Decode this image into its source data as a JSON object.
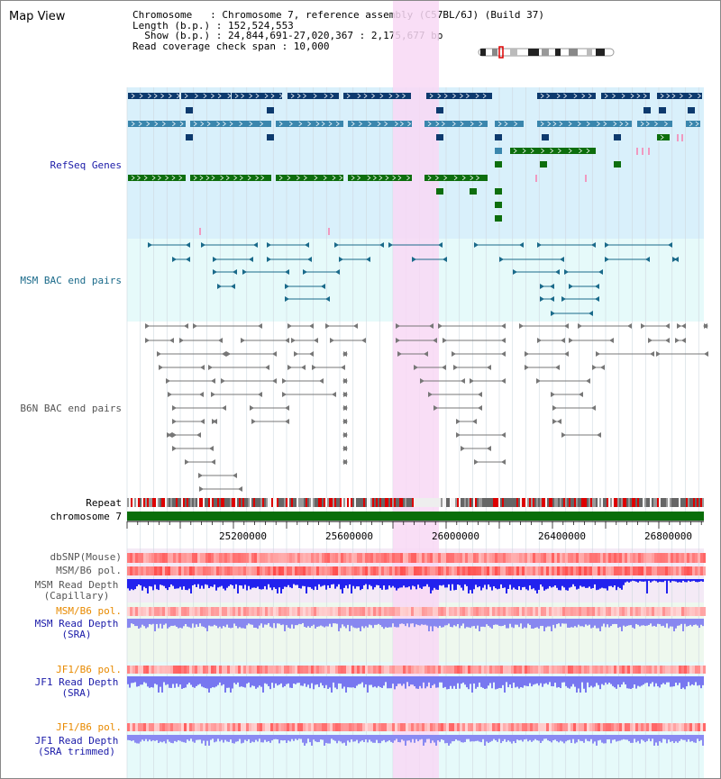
{
  "view_title": "Map View",
  "info": {
    "chromosome_line": "Chromosome   : Chromosome 7, reference assembly (C57BL/6J) (Build 37)",
    "length_line": "Length (b.p.) : 152,524,553",
    "show_line": "  Show (b.p.) : 24,844,691-27,020,367 : 2,175,677 bp",
    "coverage_line": "Read coverage check span : 10,000"
  },
  "tracks": {
    "refseq": {
      "label": "RefSeq Genes",
      "color": "#1a1aa8"
    },
    "msm_bac": {
      "label": "MSM BAC end pairs",
      "color": "#1a6a8a"
    },
    "b6n_bac": {
      "label": "B6N BAC end pairs",
      "color": "#555555"
    },
    "repeat": {
      "label": "Repeat"
    },
    "chromosome": {
      "label": "chromosome 7"
    },
    "dbsnp": {
      "label": "dbSNP(Mouse)"
    },
    "msm_b6_pol": {
      "label": "MSM/B6 pol."
    },
    "msm_depth_cap": {
      "label_line1": "MSM Read Depth",
      "label_line2": "(Capillary)"
    },
    "msm_b6_pol2": {
      "label": "MSM/B6 pol.",
      "color": "#e88a00"
    },
    "msm_depth_sra": {
      "label_line1": "MSM Read Depth",
      "label_line2": "(SRA)",
      "color": "#1a1aa8"
    },
    "jf1_b6_pol": {
      "label": "JF1/B6 pol.",
      "color": "#e88a00"
    },
    "jf1_depth_sra": {
      "label_line1": "JF1 Read Depth",
      "label_line2": "(SRA)",
      "color": "#1a1aa8"
    },
    "jf1_b6_pol2": {
      "label": "JF1/B6 pol.",
      "color": "#e88a00"
    },
    "jf1_depth_trim": {
      "label_line1": "JF1 Read Depth",
      "label_line2": "(SRA trimmed)",
      "color": "#1a1aa8"
    }
  },
  "axis_ticks": [
    "25200000",
    "25600000",
    "26000000",
    "26400000",
    "26800000"
  ],
  "colors": {
    "refseq_dark": "#0d3a6e",
    "refseq_mid": "#3a86ad",
    "refseq_green": "#0d6e0d",
    "highlight": "#f8d8f4",
    "refseq_bg": "#d9f0fb",
    "msm_bg": "#e6fafa",
    "chromosome_bar": "#0a6e0a"
  }
}
